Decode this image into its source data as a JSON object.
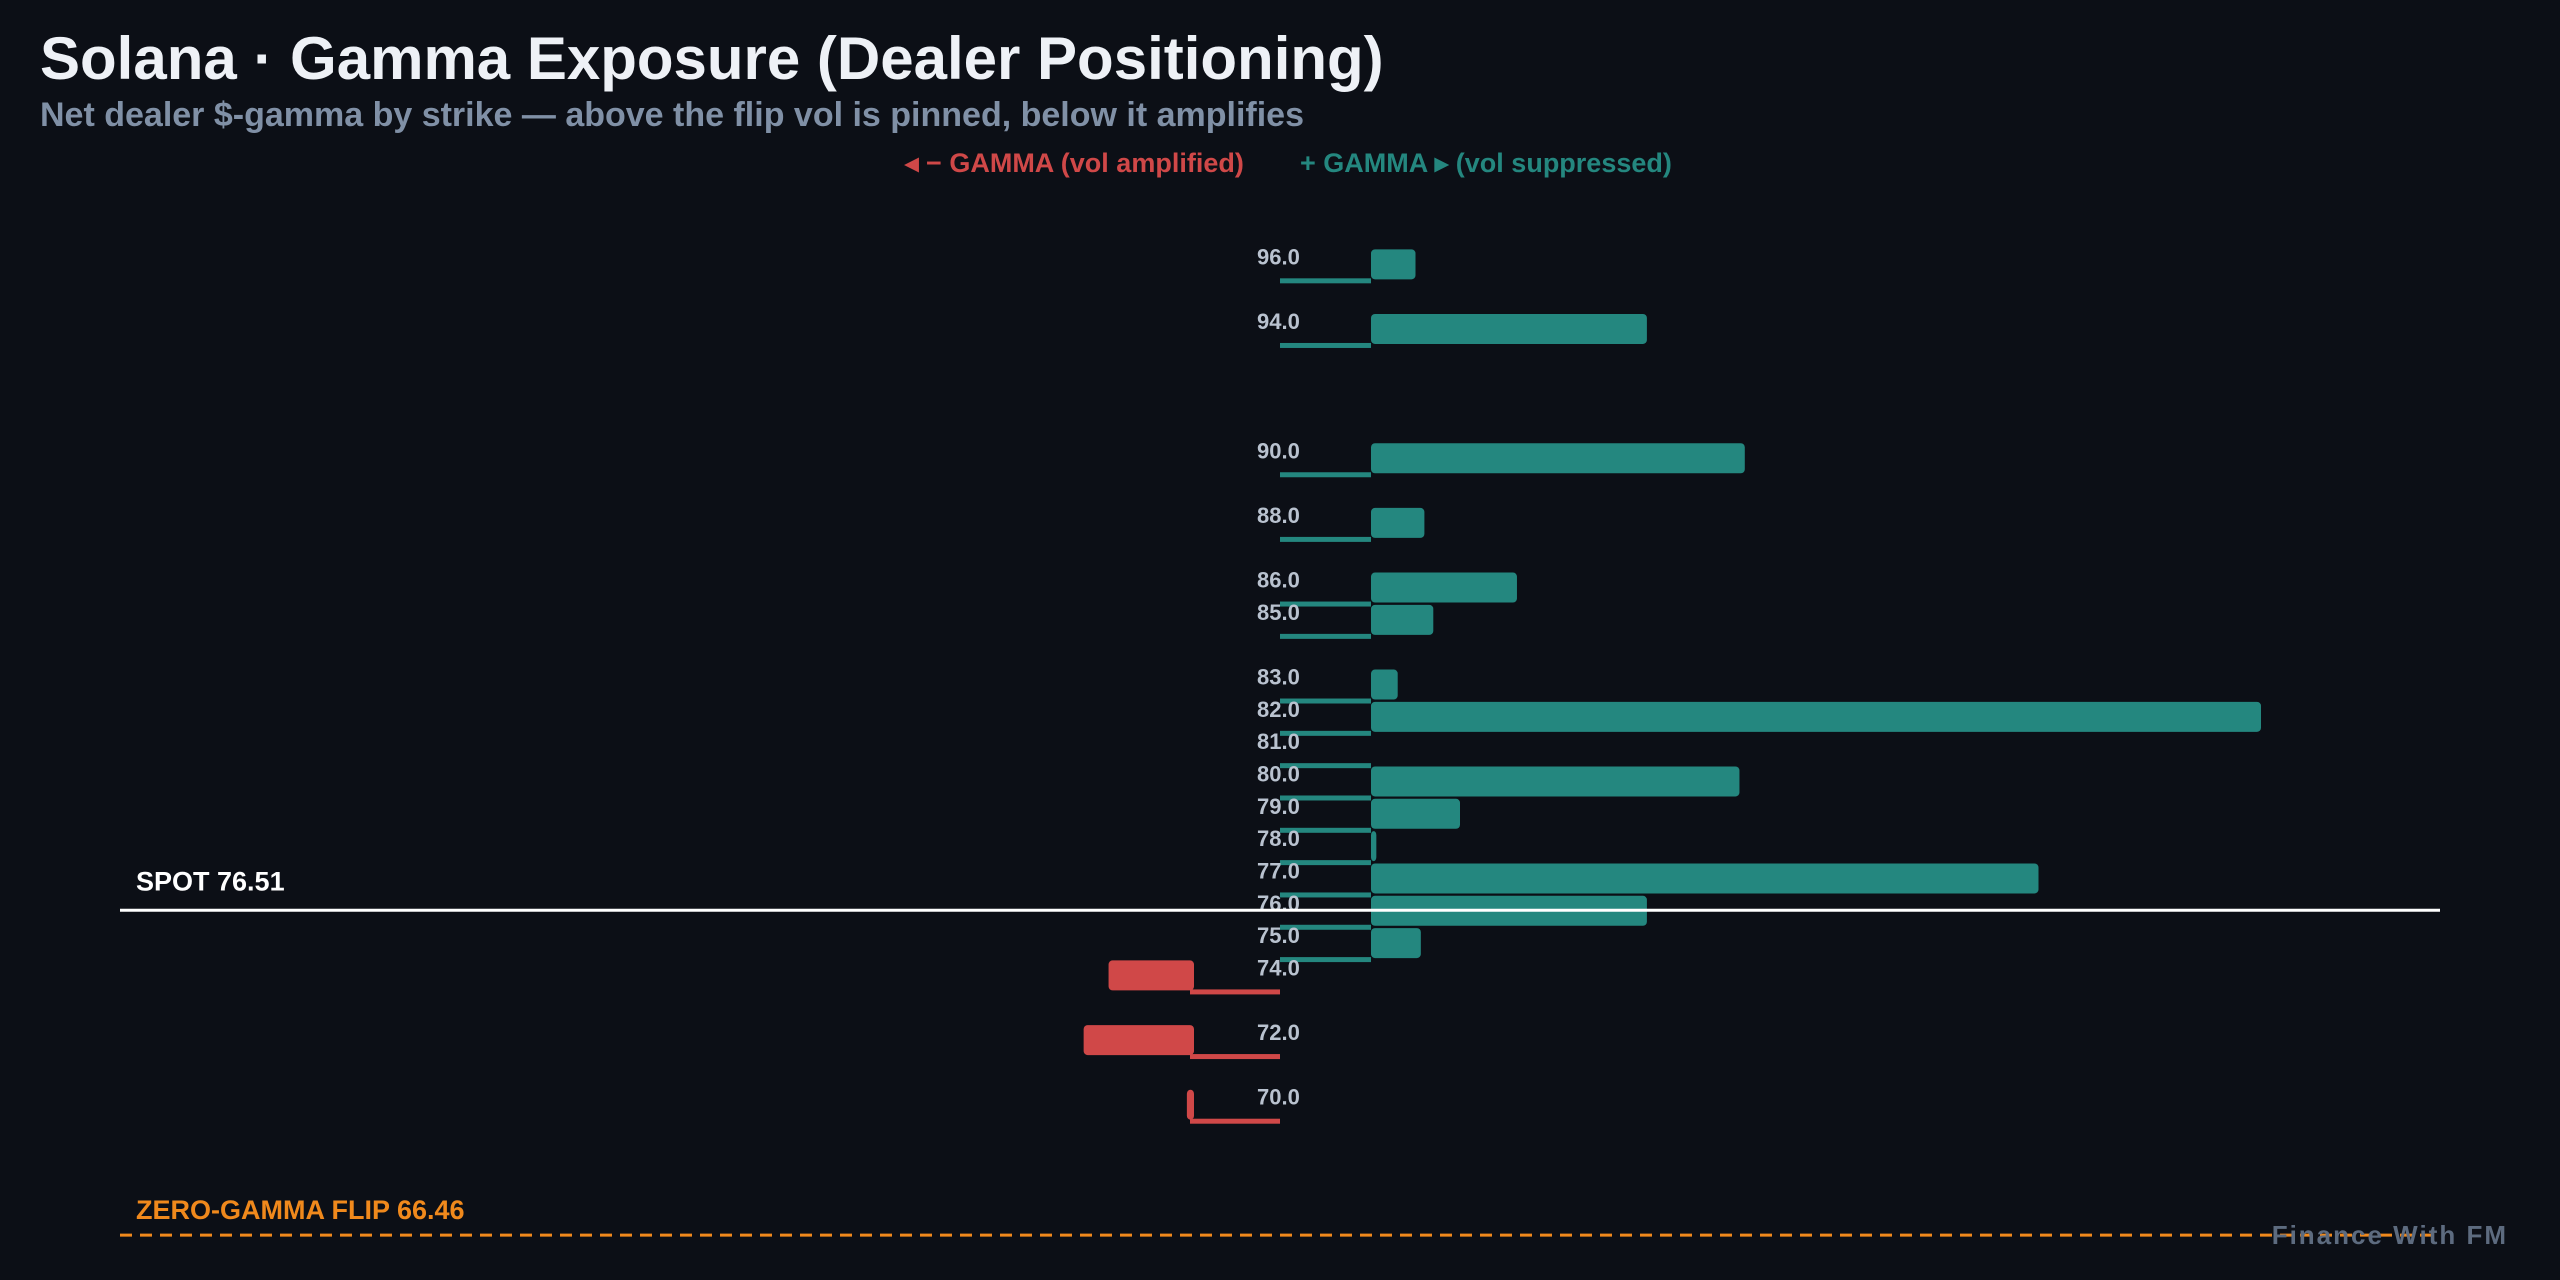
{
  "header": {
    "title": "Solana · Gamma Exposure (Dealer Positioning)",
    "subtitle": "Net dealer $-gamma by strike — above the flip vol is pinned, below it amplifies"
  },
  "legend": {
    "negative_label": "◂ − GAMMA (vol amplified)",
    "positive_label": "+ GAMMA ▸ (vol suppressed)"
  },
  "watermark": "Finance With FM",
  "colors": {
    "background": "#0c0f16",
    "positive": "#24877f",
    "negative": "#d04848",
    "flip": "#f0891c",
    "spot": "#ffffff",
    "strike_label": "#b9c2cf"
  },
  "chart_data": {
    "type": "bar",
    "orientation": "horizontal",
    "y_axis": "strike",
    "ylim": [
      66.0,
      97.0
    ],
    "strikes": [
      "96.0",
      "94.0",
      "90.0",
      "88.0",
      "86.0",
      "85.0",
      "83.0",
      "82.0",
      "81.0",
      "80.0",
      "79.0",
      "78.0",
      "77.0",
      "76.0",
      "75.0",
      "74.0",
      "72.0",
      "70.0"
    ],
    "series": [
      {
        "values": [
          0.25,
          1.55,
          2.1,
          0.3,
          0.82,
          0.35,
          0.15,
          5.0,
          0.0,
          2.07,
          0.5,
          0.03,
          3.75,
          1.55,
          0.28,
          -0.48,
          -0.62,
          -0.04
        ]
      }
    ],
    "spot": {
      "label": "SPOT 76.51",
      "value": 76.51
    },
    "flip": {
      "label": "ZERO-GAMMA FLIP 66.46",
      "value": 66.46
    }
  }
}
